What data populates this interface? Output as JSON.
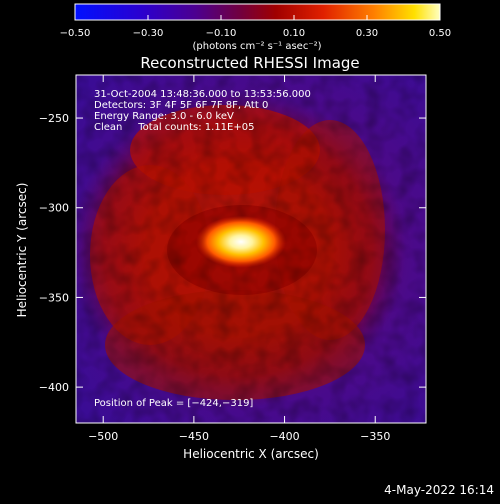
{
  "chart_data": {
    "type": "heatmap",
    "title": "Reconstructed RHESSI Image",
    "xlabel": "Heliocentric X (arcsec)",
    "ylabel": "Heliocentric Y (arcsec)",
    "xlim": [
      -515,
      -322
    ],
    "ylim": [
      -420,
      -226
    ],
    "xticks": [
      -500,
      -450,
      -400,
      -350
    ],
    "yticks": [
      -250,
      -300,
      -350,
      -400
    ],
    "tick_labels_x": [
      "−500",
      "−450",
      "−400",
      "−350"
    ],
    "tick_labels_y": [
      "−250",
      "−300",
      "−350",
      "−400"
    ],
    "colorbar": {
      "min": -0.5,
      "max": 0.5,
      "ticks": [
        -0.5,
        -0.3,
        -0.1,
        0.1,
        0.3,
        0.5
      ],
      "tick_labels": [
        "−0.50",
        "−0.30",
        "−0.10",
        "0.10",
        "0.30",
        "0.50"
      ],
      "unit_label": "(photons cm⁻² s⁻¹ asec⁻²)"
    },
    "peak": {
      "x": -424,
      "y": -319
    },
    "annotations": [
      "31-Oct-2004 13:48:36.000 to 13:53:56.000",
      "Detectors: 3F 4F 5F 6F 7F 8F, Att 0",
      "Energy Range: 3.0 - 6.0 keV",
      "Clean     Total counts: 1.11E+05"
    ],
    "peak_label": "Position of Peak = [−424,−319]",
    "footer_date": "4-May-2022 16:14",
    "colors": {
      "background": "#000000",
      "text": "#ffffff",
      "colormap": [
        "#0010ff",
        "#3a00b0",
        "#5a0080",
        "#8a0000",
        "#d01000",
        "#ff6000",
        "#ffd000",
        "#ffffff"
      ]
    }
  }
}
